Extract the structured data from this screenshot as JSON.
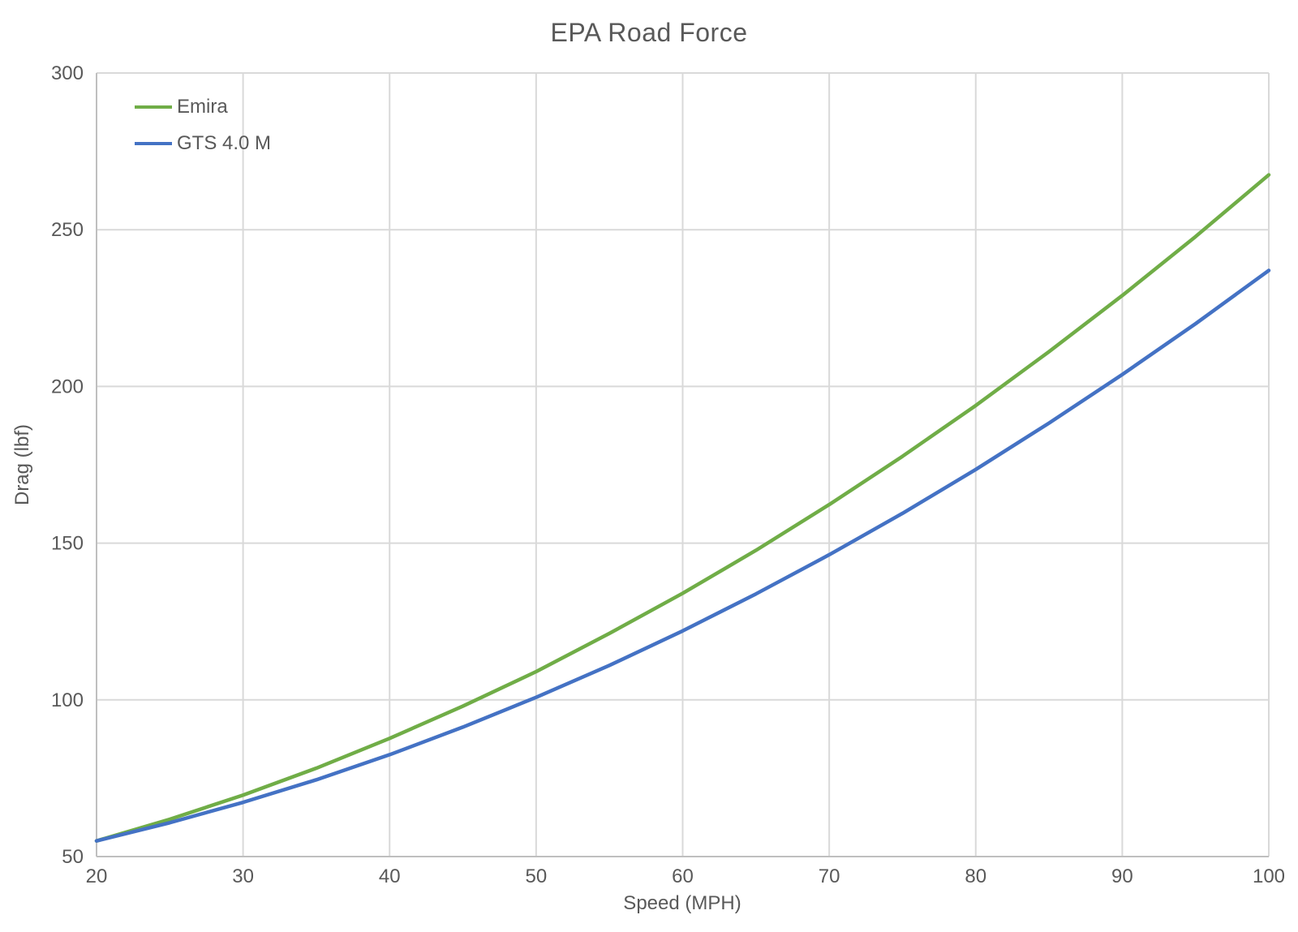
{
  "chart_data": {
    "type": "line",
    "title": "EPA Road Force",
    "xlabel": "Speed (MPH)",
    "ylabel": "Drag (lbf)",
    "xlim": [
      20,
      100
    ],
    "ylim": [
      50,
      300
    ],
    "x_ticks": [
      20,
      30,
      40,
      50,
      60,
      70,
      80,
      90,
      100
    ],
    "y_ticks": [
      50,
      100,
      150,
      200,
      250,
      300
    ],
    "grid": true,
    "legend_position": "top-left-inside",
    "axis_color": "#BFBFBF",
    "grid_color": "#D9D9D9",
    "text_color": "#595959",
    "x": [
      20,
      25,
      30,
      35,
      40,
      45,
      50,
      55,
      60,
      65,
      70,
      75,
      80,
      85,
      90,
      95,
      100
    ],
    "series": [
      {
        "name": "Emira",
        "color": "#70AD47",
        "values": [
          55.0,
          61.9,
          69.6,
          78.2,
          87.7,
          98.0,
          109.0,
          121.2,
          134.0,
          147.7,
          162.3,
          177.7,
          193.9,
          211.1,
          229.0,
          247.8,
          267.5
        ]
      },
      {
        "name": "GTS 4.0 M",
        "color": "#4472C4",
        "values": [
          55.0,
          60.8,
          67.3,
          74.5,
          82.5,
          91.3,
          100.8,
          111.0,
          122.0,
          133.8,
          146.3,
          159.5,
          173.5,
          188.3,
          203.8,
          220.0,
          237.0
        ]
      }
    ]
  }
}
